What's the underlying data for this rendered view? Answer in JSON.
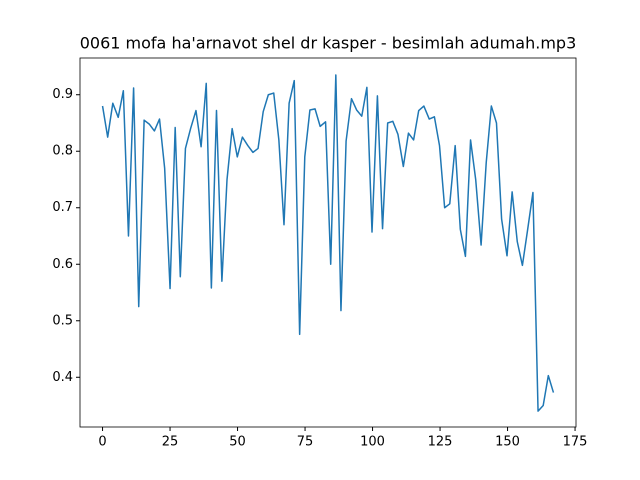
{
  "chart_data": {
    "type": "line",
    "title": "0061 mofa ha'arnavot shel dr kasper - besimlah adumah.mp3",
    "x": [
      0,
      1.9,
      3.8,
      5.8,
      7.7,
      9.6,
      11.5,
      13.4,
      15.4,
      17.3,
      19.2,
      21.1,
      23,
      25,
      26.9,
      28.8,
      30.7,
      32.6,
      34.6,
      36.5,
      38.4,
      40.3,
      42.2,
      44.2,
      46.1,
      48,
      49.9,
      51.8,
      53.8,
      55.7,
      57.6,
      59.5,
      61.4,
      63.4,
      65.3,
      67.2,
      69.1,
      71,
      73,
      74.9,
      76.8,
      78.7,
      80.6,
      82.6,
      84.5,
      86.4,
      88.3,
      90.2,
      92.2,
      94.1,
      96,
      97.9,
      99.8,
      101.8,
      103.7,
      105.6,
      107.5,
      109.4,
      111.4,
      113.3,
      115.2,
      117.1,
      119,
      121,
      122.9,
      124.8,
      126.7,
      128.6,
      130.6,
      132.5,
      134.4,
      136.3,
      138.2,
      140.2,
      142.1,
      144,
      145.9,
      147.8,
      149.8,
      151.7,
      153.6,
      155.5,
      157.4,
      159.4,
      161.3,
      163.2,
      165.1,
      167
    ],
    "series": [
      {
        "color": "#1f77b4",
        "values": [
          0.88,
          0.825,
          0.885,
          0.86,
          0.907,
          0.65,
          0.912,
          0.525,
          0.855,
          0.848,
          0.836,
          0.857,
          0.77,
          0.557,
          0.842,
          0.578,
          0.805,
          0.84,
          0.872,
          0.808,
          0.92,
          0.558,
          0.872,
          0.57,
          0.75,
          0.84,
          0.79,
          0.825,
          0.81,
          0.798,
          0.805,
          0.87,
          0.9,
          0.903,
          0.82,
          0.67,
          0.885,
          0.925,
          0.476,
          0.79,
          0.873,
          0.875,
          0.844,
          0.852,
          0.6,
          0.935,
          0.518,
          0.818,
          0.893,
          0.873,
          0.862,
          0.913,
          0.657,
          0.898,
          0.663,
          0.85,
          0.853,
          0.83,
          0.773,
          0.832,
          0.82,
          0.872,
          0.88,
          0.857,
          0.861,
          0.81,
          0.7,
          0.707,
          0.81,
          0.662,
          0.614,
          0.82,
          0.75,
          0.634,
          0.78,
          0.88,
          0.85,
          0.68,
          0.615,
          0.728,
          0.64,
          0.598,
          0.66,
          0.727,
          0.34,
          0.35,
          0.403,
          0.373
        ]
      }
    ],
    "xlim": [
      -8.35,
      175.35
    ],
    "xticks": [
      0,
      25,
      50,
      75,
      100,
      125,
      150,
      175
    ],
    "ylim": [
      0.312,
      0.965
    ],
    "yticks": [
      0.4,
      0.5,
      0.6,
      0.7,
      0.8,
      0.9
    ]
  }
}
